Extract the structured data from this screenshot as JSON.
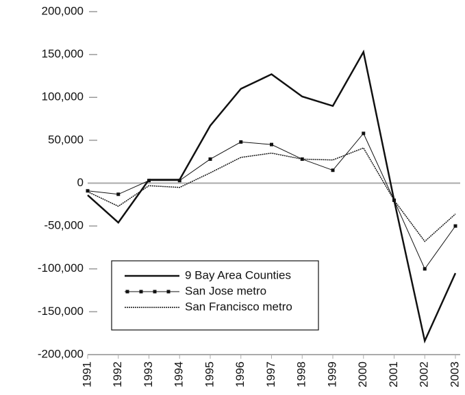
{
  "chart_data": {
    "type": "line",
    "categories": [
      "1991",
      "1992",
      "1993",
      "1994",
      "1995",
      "1996",
      "1997",
      "1998",
      "1999",
      "2000",
      "2001",
      "2002",
      "2003"
    ],
    "series": [
      {
        "name": "9 Bay Area Counties",
        "color": "#111111",
        "values": [
          -14000,
          -46000,
          4000,
          4000,
          67000,
          110000,
          127000,
          101000,
          90000,
          153000,
          -20000,
          -184000,
          -105000
        ]
      },
      {
        "name": "San Jose metro",
        "color": "#111111",
        "values": [
          -9000,
          -13000,
          3000,
          3000,
          28000,
          48000,
          45000,
          28000,
          15000,
          58000,
          -20000,
          -100000,
          -50000
        ]
      },
      {
        "name": "San Francisco metro",
        "color": "#111111",
        "values": [
          -10000,
          -27000,
          -3000,
          -5000,
          12000,
          30000,
          35000,
          28000,
          27000,
          41000,
          -20000,
          -68000,
          -36000
        ]
      }
    ],
    "ylim": [
      -200000,
      200000
    ],
    "yticks": [
      {
        "value": -200000,
        "label": "-200,000"
      },
      {
        "value": -150000,
        "label": "-150,000"
      },
      {
        "value": -100000,
        "label": "-100,000"
      },
      {
        "value": -50000,
        "label": "-50,000"
      },
      0,
      {
        "value": 50000,
        "label": "50,000"
      },
      {
        "value": 100000,
        "label": "100,000"
      },
      {
        "value": 150000,
        "label": "150,000"
      },
      {
        "value": 200000,
        "label": "200,000"
      }
    ],
    "legend": "lower left"
  }
}
